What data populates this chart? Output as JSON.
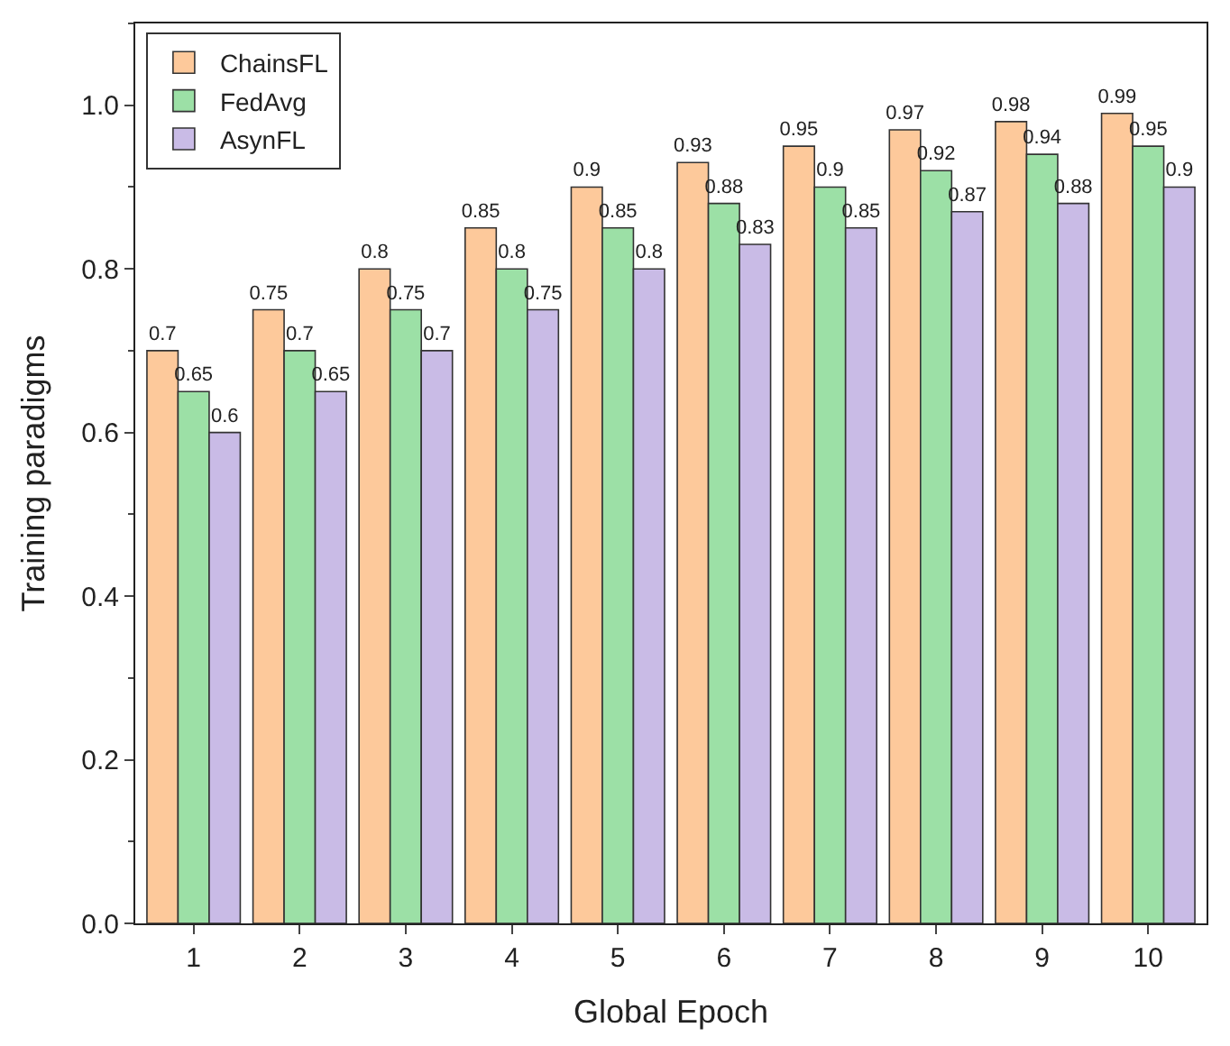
{
  "chart_data": {
    "type": "bar",
    "xlabel": "Global Epoch",
    "ylabel": "Training paradigms",
    "categories": [
      "1",
      "2",
      "3",
      "4",
      "5",
      "6",
      "7",
      "8",
      "9",
      "10"
    ],
    "series": [
      {
        "name": "ChainsFL",
        "color": "#fdc99b",
        "values": [
          0.7,
          0.75,
          0.8,
          0.85,
          0.9,
          0.93,
          0.95,
          0.97,
          0.98,
          0.99
        ]
      },
      {
        "name": "FedAvg",
        "color": "#9ce0a6",
        "values": [
          0.65,
          0.7,
          0.75,
          0.8,
          0.85,
          0.88,
          0.9,
          0.92,
          0.94,
          0.95
        ]
      },
      {
        "name": "AsynFL",
        "color": "#c9bbe6",
        "values": [
          0.6,
          0.65,
          0.7,
          0.75,
          0.8,
          0.83,
          0.85,
          0.87,
          0.88,
          0.9
        ]
      }
    ],
    "ylim": [
      0,
      1.1
    ],
    "yticks": [
      {
        "value": 0,
        "label": "0.0"
      },
      {
        "value": 0.2,
        "label": "0.2"
      },
      {
        "value": 0.4,
        "label": "0.4"
      },
      {
        "value": 0.6,
        "label": "0.6"
      },
      {
        "value": 0.8,
        "label": "0.8"
      },
      {
        "value": 1.0,
        "label": "1.0"
      }
    ],
    "data_labels": true,
    "legend": "top left"
  }
}
